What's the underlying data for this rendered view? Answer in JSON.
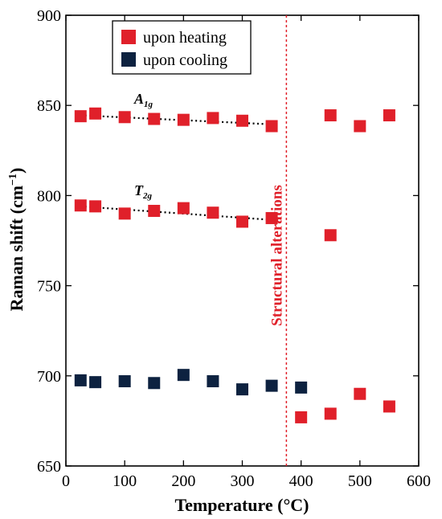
{
  "chart_data": {
    "type": "scatter",
    "title": "",
    "xlabel": "Temperature (°C)",
    "ylabel": "Raman shift (cm",
    "ylabel_sup": "−1",
    "ylabel_end": ")",
    "xlim": [
      0,
      600
    ],
    "ylim": [
      650,
      900
    ],
    "x_ticks": [
      0,
      100,
      200,
      300,
      400,
      500,
      600
    ],
    "y_ticks": [
      650,
      700,
      750,
      800,
      850,
      900
    ],
    "grid": false,
    "legend_position": "top-left",
    "series": [
      {
        "name": "upon heating",
        "color": "#e0202a",
        "marker": "square",
        "points": [
          [
            25,
            844
          ],
          [
            50,
            845.5
          ],
          [
            100,
            843.5
          ],
          [
            150,
            842.5
          ],
          [
            200,
            842
          ],
          [
            250,
            843
          ],
          [
            300,
            841.5
          ],
          [
            350,
            838.5
          ],
          [
            450,
            844.5
          ],
          [
            500,
            838.5
          ],
          [
            550,
            844.5
          ],
          [
            25,
            794.5
          ],
          [
            50,
            794
          ],
          [
            100,
            790
          ],
          [
            150,
            791.5
          ],
          [
            200,
            793
          ],
          [
            250,
            790.5
          ],
          [
            300,
            785.5
          ],
          [
            350,
            787.5
          ],
          [
            450,
            778
          ],
          [
            400,
            677
          ],
          [
            450,
            679
          ],
          [
            500,
            690
          ],
          [
            550,
            683
          ]
        ]
      },
      {
        "name": "upon cooling",
        "color": "#0d2240",
        "marker": "square",
        "points": [
          [
            25,
            697.5
          ],
          [
            50,
            696.5
          ],
          [
            100,
            697
          ],
          [
            150,
            696
          ],
          [
            200,
            700.5
          ],
          [
            250,
            697
          ],
          [
            300,
            692.5
          ],
          [
            350,
            694.5
          ],
          [
            400,
            693.5
          ]
        ]
      }
    ],
    "trend_lines": [
      {
        "label_main": "A",
        "label_sub": "1g",
        "points": [
          [
            25,
            844.5
          ],
          [
            350,
            839.5
          ]
        ]
      },
      {
        "label_main": "T",
        "label_sub": "2g",
        "points": [
          [
            25,
            794
          ],
          [
            350,
            786.5
          ]
        ]
      }
    ],
    "vertical_line": {
      "x": 375,
      "label": "Structural alterations",
      "color": "#e0202a"
    }
  }
}
